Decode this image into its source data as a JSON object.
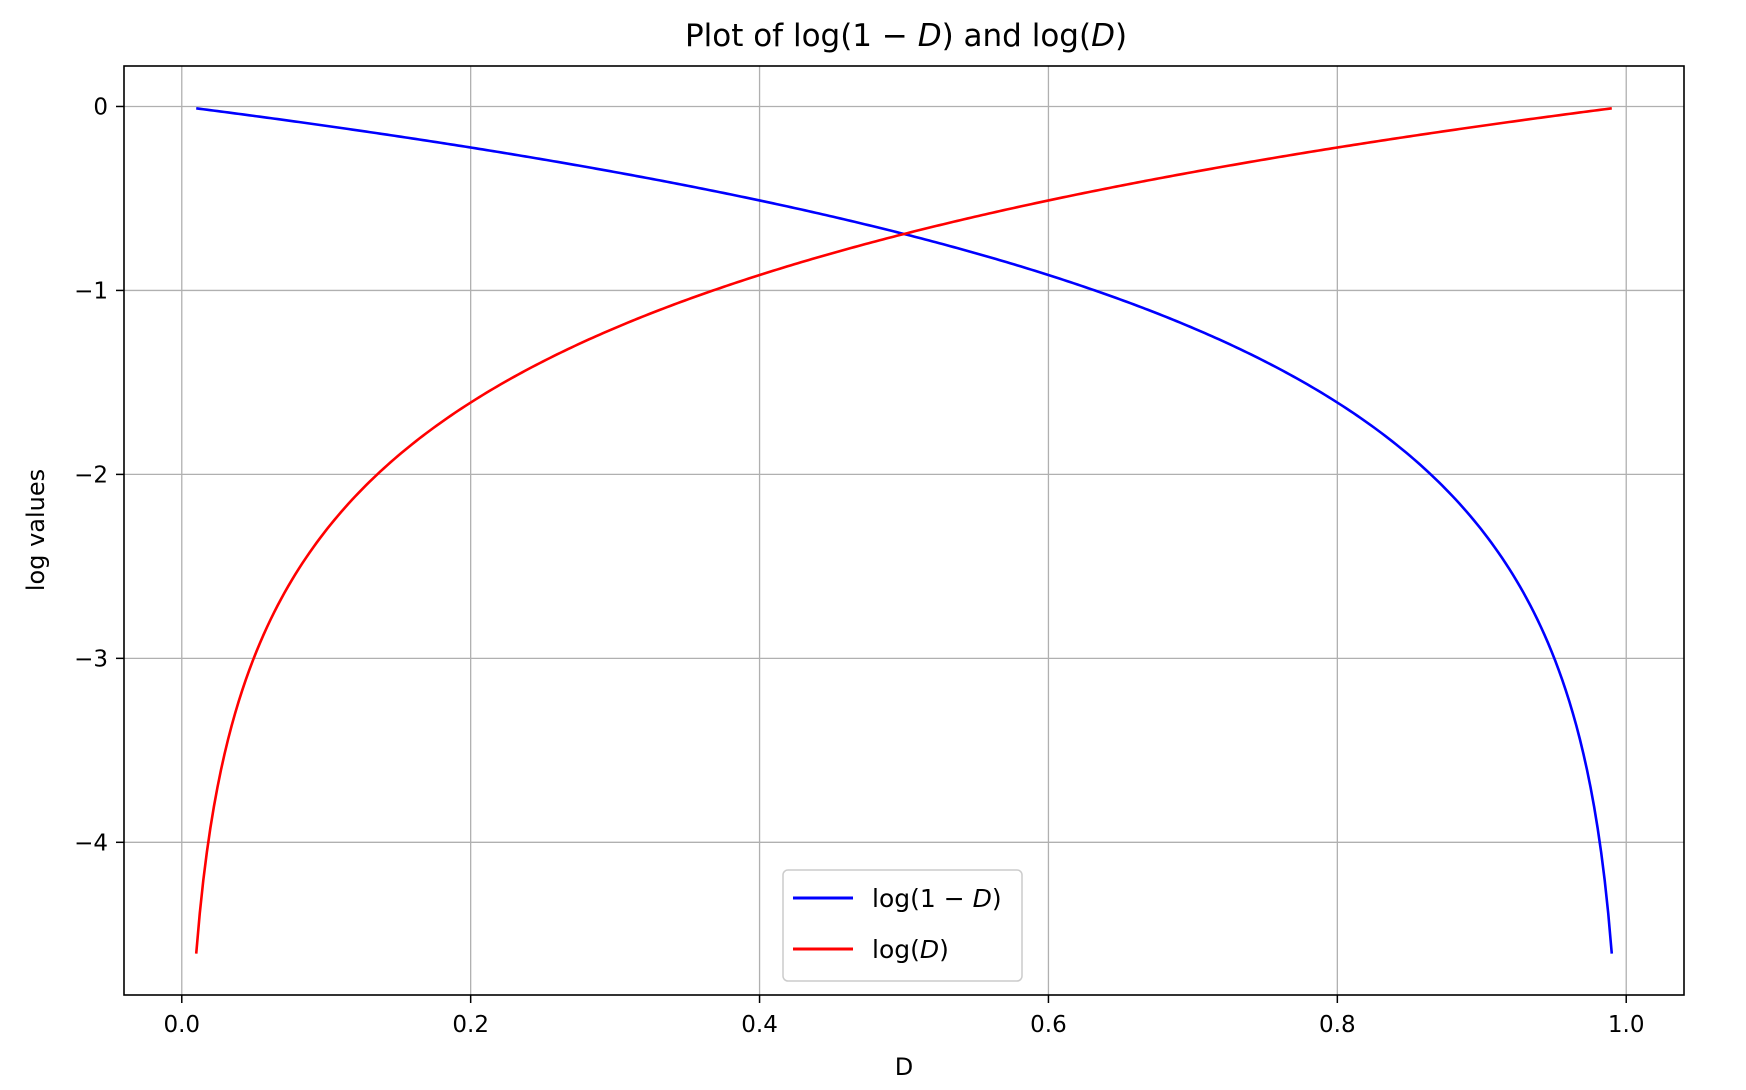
{
  "chart_data": {
    "type": "line",
    "title": {
      "prefix": "Plot of log(1",
      "minus": " − ",
      "var1": "D",
      "middle": ") and log(",
      "var2": "D",
      "suffix": ")"
    },
    "xlabel": "D",
    "ylabel": "log values",
    "xlim": [
      -0.04,
      1.04
    ],
    "ylim": [
      -4.83,
      0.22
    ],
    "xticks": [
      0.0,
      0.2,
      0.4,
      0.6,
      0.8,
      1.0
    ],
    "xtick_labels": [
      "0.0",
      "0.2",
      "0.4",
      "0.6",
      "0.8",
      "1.0"
    ],
    "yticks": [
      0,
      -1,
      -2,
      -3,
      -4
    ],
    "ytick_labels": [
      "0",
      "−1",
      "−2",
      "−3",
      "−4"
    ],
    "grid": true,
    "legend_position": "lower center",
    "x_range": [
      0.01,
      0.99
    ],
    "series": [
      {
        "key": "log_one_minus_d",
        "formula": "log(1 - D)",
        "label": {
          "prefix": "log(1",
          "minus": " − ",
          "var": "D",
          "suffix": ")"
        },
        "color": "#0000ff"
      },
      {
        "key": "log_d",
        "formula": "log(D)",
        "label": {
          "prefix": "log(",
          "minus": "",
          "var": "D",
          "suffix": ")"
        },
        "color": "#ff0000"
      }
    ]
  }
}
